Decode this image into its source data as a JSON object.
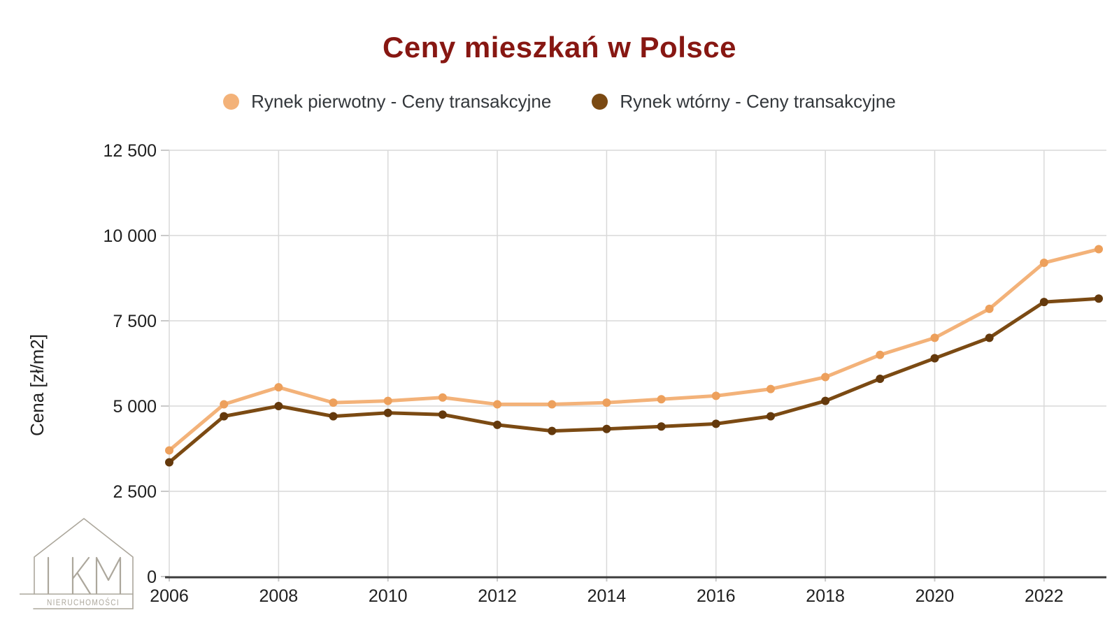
{
  "title": "Ceny mieszkań w Polsce",
  "colors": {
    "title": "#871712",
    "primary": "#F3B279",
    "primary_point": "#EDA05C",
    "secondary": "#7B4A13",
    "secondary_point": "#64390C",
    "grid": "#D9D9D9",
    "tick": "#C9C9C9",
    "axis": "#3D3D3D",
    "label_text": "#202020",
    "legend_text": "#33373b",
    "logo": "#ACA79C"
  },
  "legend": {
    "items": [
      {
        "label": "Rynek pierwotny - Ceny transakcyjne"
      },
      {
        "label": "Rynek wtórny - Ceny transakcyjne"
      }
    ]
  },
  "logo": {
    "letters": "LKM",
    "subtitle": "NIERUCHOMOŚCI"
  },
  "chart_data": {
    "type": "line",
    "title": "Ceny mieszkań w Polsce",
    "xlabel": "",
    "ylabel": "Cena [zł/m2]",
    "x": [
      2006,
      2007,
      2008,
      2009,
      2010,
      2011,
      2012,
      2013,
      2014,
      2015,
      2016,
      2017,
      2018,
      2019,
      2020,
      2021,
      2022,
      2023
    ],
    "series": [
      {
        "name": "Rynek pierwotny - Ceny transakcyjne",
        "color": "#F3B279",
        "point_color": "#EDA05C",
        "values": [
          3700,
          5050,
          5550,
          5100,
          5150,
          5250,
          5050,
          5050,
          5100,
          5200,
          5300,
          5500,
          5850,
          6500,
          7000,
          7850,
          9200,
          9600
        ]
      },
      {
        "name": "Rynek wtórny - Ceny transakcyjne",
        "color": "#7B4A13",
        "point_color": "#64390C",
        "values": [
          3350,
          4700,
          5000,
          4700,
          4800,
          4750,
          4450,
          4270,
          4330,
          4400,
          4480,
          4700,
          5150,
          5800,
          6400,
          7000,
          8050,
          8150
        ]
      }
    ],
    "ylim": [
      0,
      12500
    ],
    "y_ticks": {
      "values": [
        0,
        2500,
        5000,
        7500,
        10000,
        12500
      ],
      "labels": [
        "0",
        "2 500",
        "5 000",
        "7 500",
        "10 000",
        "12 500"
      ]
    },
    "x_ticks": {
      "values": [
        2006,
        2008,
        2010,
        2012,
        2014,
        2016,
        2018,
        2020,
        2022
      ],
      "labels": [
        "2006",
        "2008",
        "2010",
        "2012",
        "2014",
        "2016",
        "2018",
        "2020",
        "2022"
      ]
    },
    "grid": true,
    "legend_position": "top"
  }
}
